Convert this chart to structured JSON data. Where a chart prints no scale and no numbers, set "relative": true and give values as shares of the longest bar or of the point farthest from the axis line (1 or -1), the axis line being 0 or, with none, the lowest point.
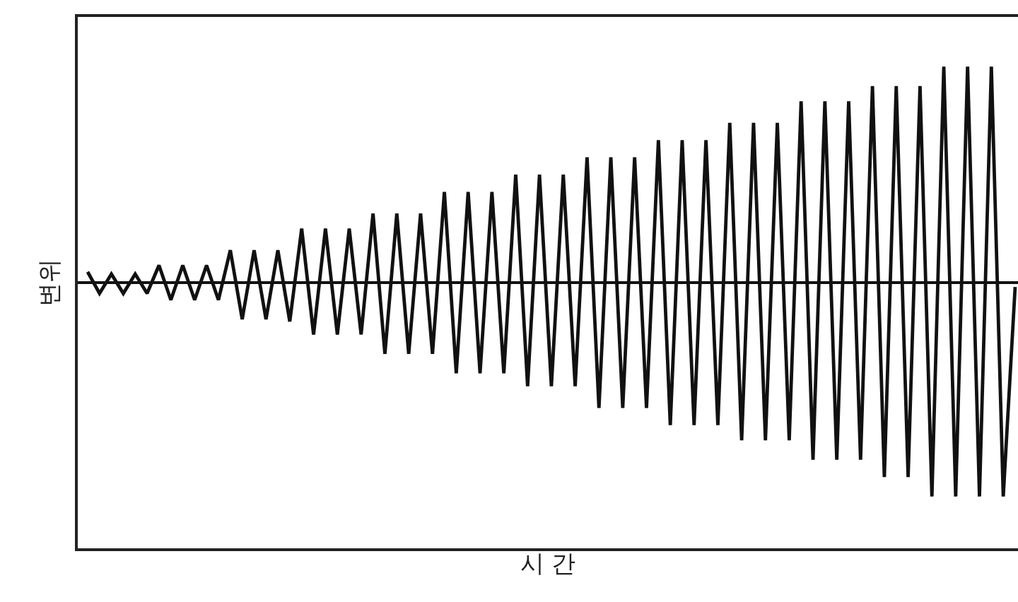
{
  "chart_data": {
    "type": "line",
    "xlabel": "시 간",
    "ylabel": "변위",
    "relative": true,
    "categories": [
      null,
      null,
      null,
      null,
      null,
      null,
      null,
      null,
      null,
      null,
      null,
      null,
      null,
      null,
      null,
      null,
      null,
      null,
      null,
      null,
      null,
      null,
      null,
      null,
      null,
      null,
      null,
      null,
      null,
      null,
      null,
      null,
      null,
      null,
      null,
      null,
      null,
      null,
      null,
      null,
      null,
      null,
      null,
      null,
      null,
      null,
      null,
      null,
      null,
      null,
      null,
      null,
      null,
      null,
      null,
      null,
      null,
      null,
      null,
      null,
      null,
      null,
      null,
      null,
      null,
      null,
      null,
      null,
      null,
      null,
      null,
      null,
      null,
      null,
      null,
      null,
      null,
      null,
      null
    ],
    "values": [
      0.05,
      -0.05,
      0.04,
      -0.05,
      0.04,
      -0.05,
      0.08,
      -0.08,
      0.08,
      -0.08,
      0.08,
      -0.08,
      0.15,
      -0.17,
      0.15,
      -0.17,
      0.15,
      -0.18,
      0.25,
      -0.24,
      0.25,
      -0.24,
      0.25,
      -0.24,
      0.32,
      -0.33,
      0.32,
      -0.33,
      0.32,
      -0.33,
      0.42,
      -0.42,
      0.42,
      -0.42,
      0.42,
      -0.42,
      0.5,
      -0.48,
      0.5,
      -0.48,
      0.5,
      -0.48,
      0.58,
      -0.58,
      0.58,
      -0.58,
      0.58,
      -0.58,
      0.66,
      -0.66,
      0.66,
      -0.66,
      0.66,
      -0.66,
      0.74,
      -0.73,
      0.74,
      -0.73,
      0.74,
      -0.73,
      0.84,
      -0.82,
      0.84,
      -0.82,
      0.84,
      -0.82,
      0.91,
      -0.9,
      0.91,
      -0.9,
      0.91,
      -0.99,
      1,
      -0.99,
      1,
      -0.99,
      1,
      -0.99,
      -0.02
    ],
    "color": "#111111",
    "marker": "none",
    "line_style": "solid",
    "grid": false,
    "legend": false,
    "tick_labels": false
  }
}
